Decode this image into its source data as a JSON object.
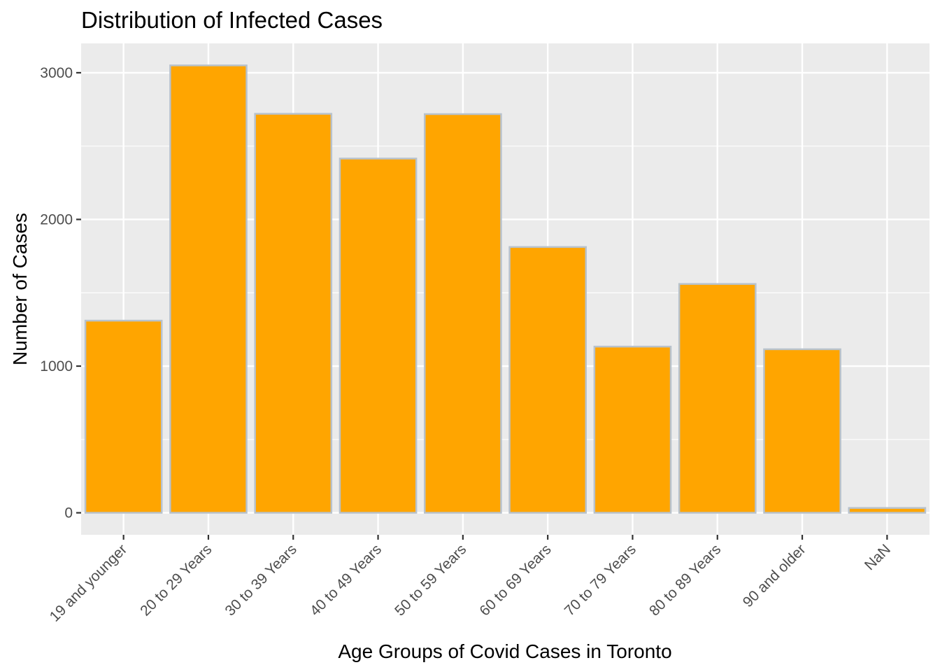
{
  "chart_data": {
    "type": "bar",
    "title": "Distribution of Infected Cases",
    "xlabel": "Age Groups of Covid Cases in Toronto",
    "ylabel": "Number of Cases",
    "categories": [
      "19 and younger",
      "20 to 29 Years",
      "30 to 39 Years",
      "40 to 49 Years",
      "50 to 59 Years",
      "60 to 69 Years",
      "70 to 79 Years",
      "80 to 89 Years",
      "90 and older",
      "NaN"
    ],
    "values": [
      1310,
      3050,
      2720,
      2415,
      2718,
      1812,
      1133,
      1560,
      1115,
      33
    ],
    "ylim": [
      -150,
      3200
    ],
    "yticks": [
      0,
      1000,
      2000,
      3000
    ],
    "ytick_labels": [
      "0",
      "1000",
      "2000",
      "3000"
    ],
    "grid": true,
    "colors": {
      "bar_fill": "#FFA500",
      "bar_outline": "#B8C2CC",
      "panel_background": "#EBEBEB",
      "grid": "#FFFFFF",
      "tick": "#333333"
    }
  }
}
